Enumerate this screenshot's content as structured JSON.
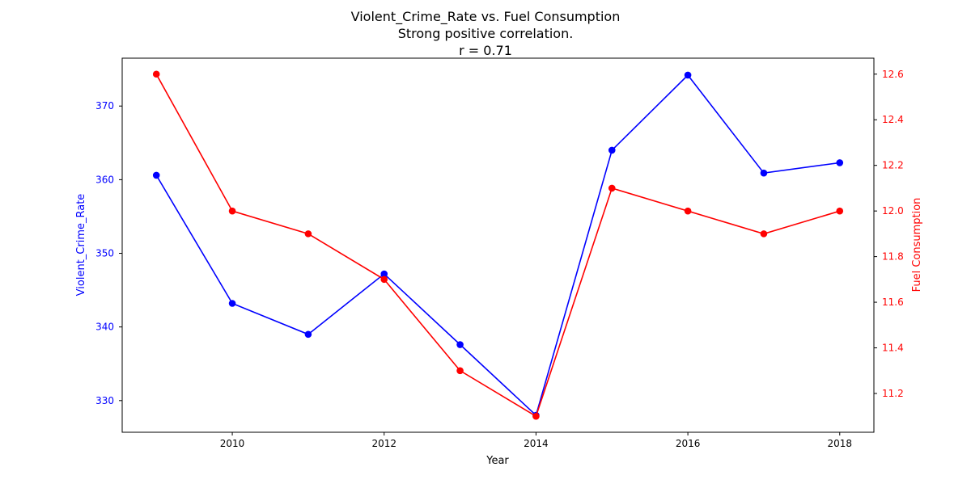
{
  "chart_data": {
    "type": "line",
    "title_lines": [
      "Violent_Crime_Rate vs. Fuel Consumption",
      "Strong positive correlation.",
      "r = 0.71"
    ],
    "xlabel": "Year",
    "ylabel_left": "Violent_Crime_Rate",
    "ylabel_right": "Fuel Consumption",
    "x": [
      2009,
      2010,
      2011,
      2012,
      2013,
      2014,
      2015,
      2016,
      2017,
      2018
    ],
    "x_ticks": [
      2010,
      2012,
      2014,
      2016,
      2018
    ],
    "xlim": [
      2008.55,
      2018.45
    ],
    "series": [
      {
        "name": "Violent_Crime_Rate",
        "axis": "left",
        "color": "#0000ff",
        "values": [
          360.6,
          343.2,
          339.0,
          347.2,
          337.6,
          328.0,
          364.0,
          374.2,
          360.9,
          362.3
        ]
      },
      {
        "name": "Fuel Consumption",
        "axis": "right",
        "color": "#ff0000",
        "values": [
          12.6,
          12.0,
          11.9,
          11.7,
          11.3,
          11.1,
          12.1,
          12.0,
          11.9,
          12.0
        ]
      }
    ],
    "ylim_left": [
      325.7,
      376.5
    ],
    "yticks_left": [
      330,
      340,
      350,
      360,
      370
    ],
    "ylim_right": [
      11.03,
      12.67
    ],
    "yticks_right": [
      11.2,
      11.4,
      11.6,
      11.8,
      12.0,
      12.2,
      12.4,
      12.6
    ],
    "grid": false,
    "legend": "none"
  }
}
